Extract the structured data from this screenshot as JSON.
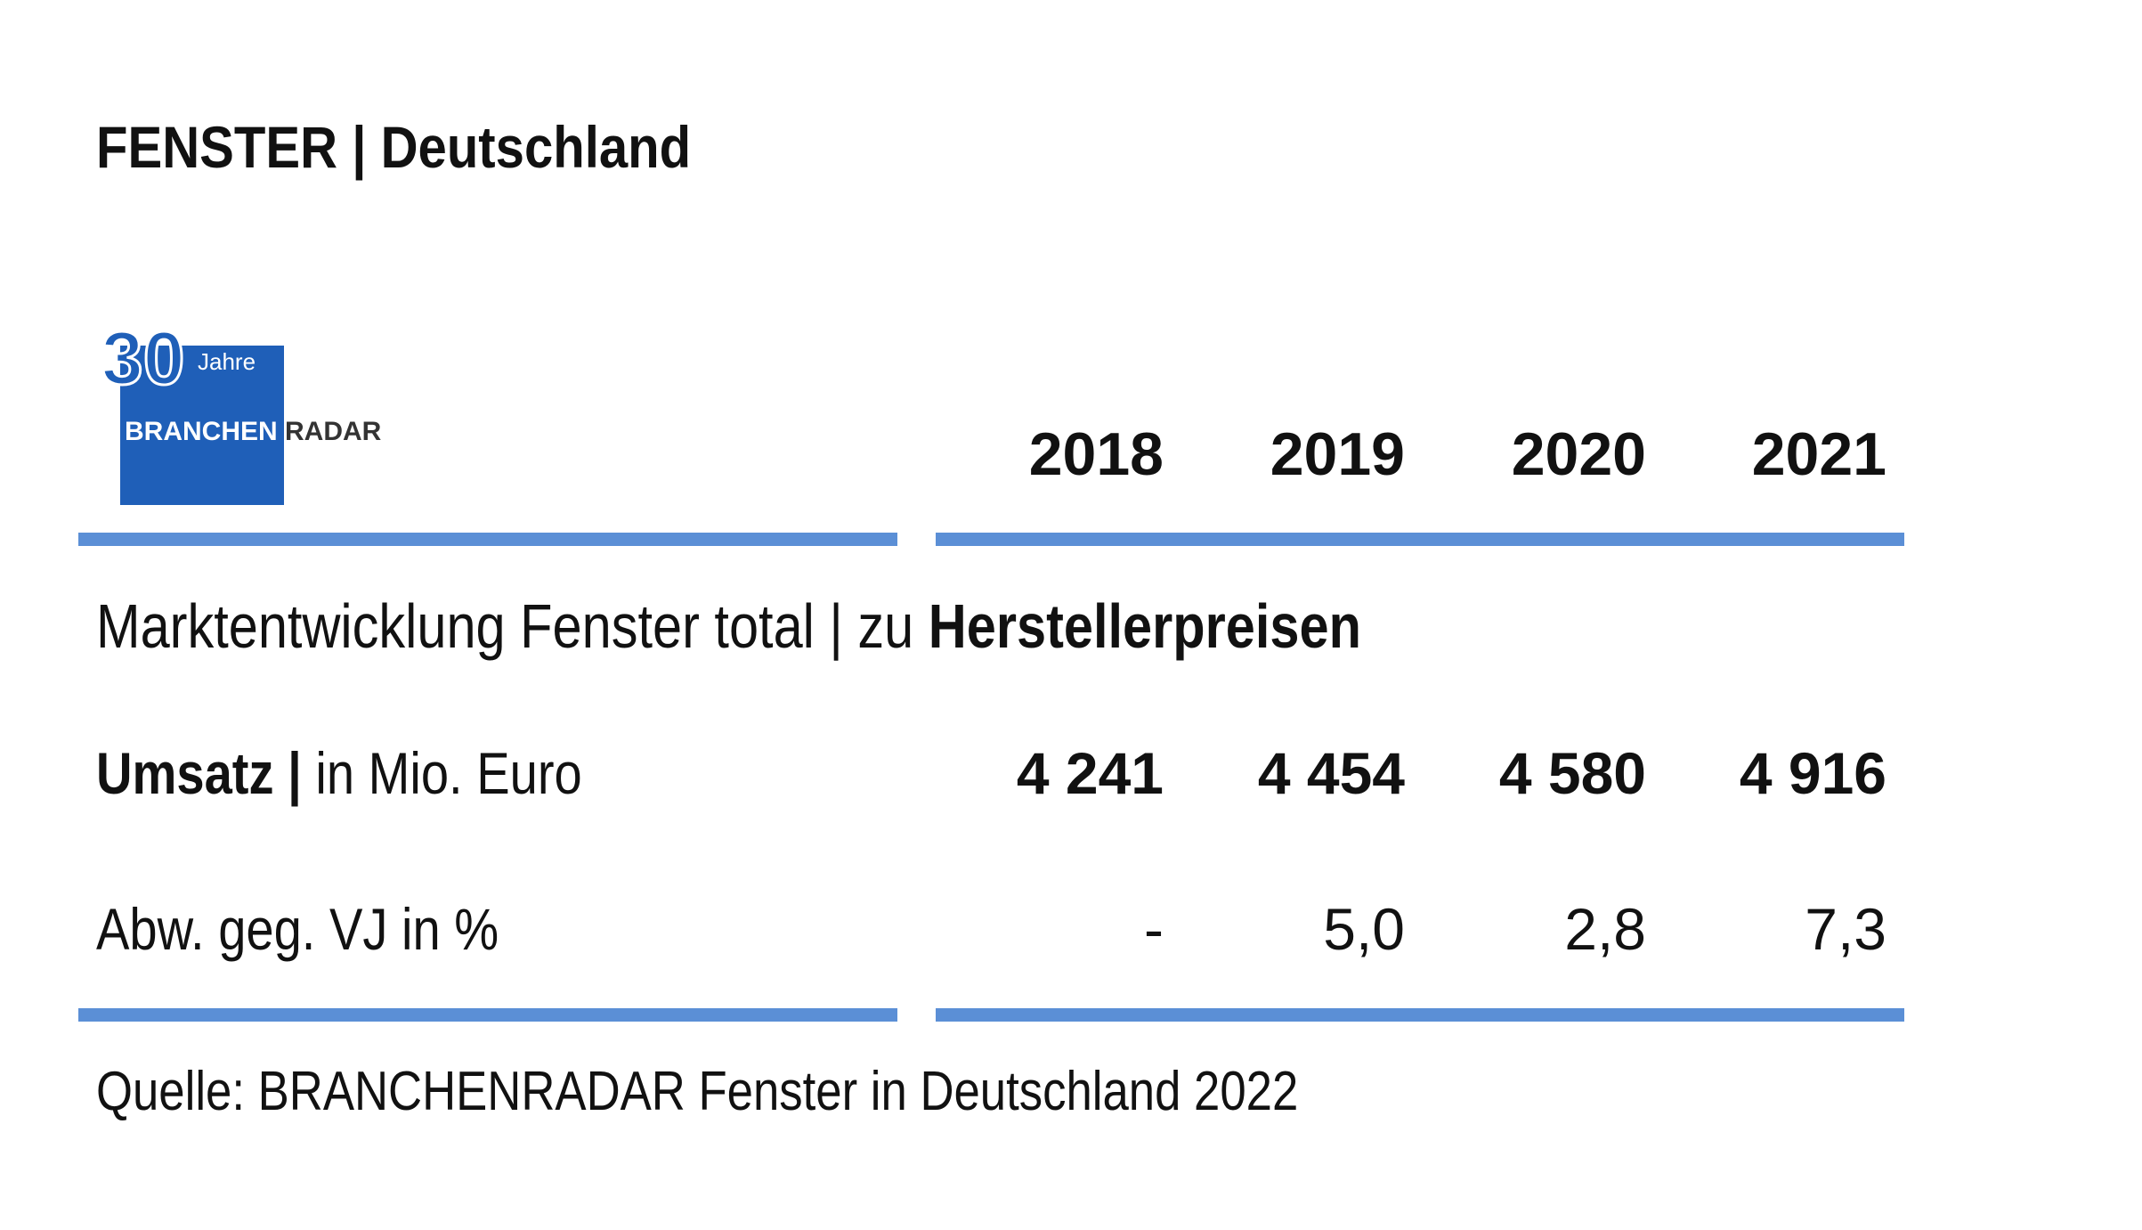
{
  "header": {
    "title": "FENSTER | Deutschland"
  },
  "logo": {
    "number": "30",
    "jahre": "Jahre",
    "brand_left": "BRANCHEN",
    "brand_right": "RADAR"
  },
  "table": {
    "columns": [
      "2018",
      "2019",
      "2020",
      "2021"
    ],
    "subtitle": {
      "normal": "Marktentwicklung Fenster total | zu",
      "bold": "Herstellerpreisen"
    },
    "rows": [
      {
        "label_bold": "Umsatz |",
        "label": "in Mio. Euro",
        "values": [
          "4 241",
          "4 454",
          "4 580",
          "4 916"
        ]
      },
      {
        "label": "Abw. geg. VJ in %",
        "values": [
          "-",
          "5,0",
          "2,8",
          "7,3"
        ]
      }
    ]
  },
  "source": "Quelle: BRANCHENRADAR Fenster in Deutschland 2022"
}
